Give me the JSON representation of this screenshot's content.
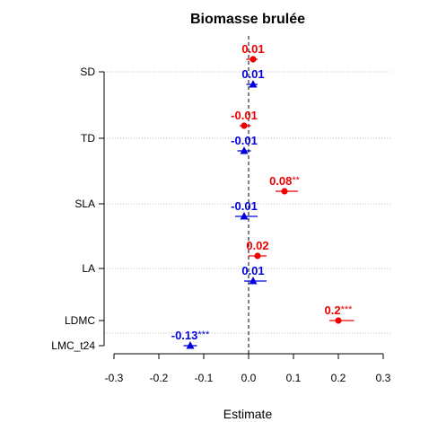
{
  "chart_data": {
    "type": "scatter",
    "title": "Biomasse brulée",
    "xlabel": "Estimate",
    "ylabel": "",
    "xlim": [
      -0.3,
      0.3
    ],
    "x_ticks": [
      "-0.3",
      "-0.2",
      "-0.1",
      "0.0",
      "0.1",
      "0.2",
      "0.3"
    ],
    "x_tick_values": [
      -0.3,
      -0.2,
      -0.1,
      0.0,
      0.1,
      0.2,
      0.3
    ],
    "reference_line_x": 0,
    "grid": "horizontal dotted at each trait",
    "categories": [
      "SD",
      "TD",
      "SLA",
      "LA",
      "LDMC",
      "LMC_t24"
    ],
    "series": [
      {
        "color": "#ee0000",
        "marker": "circle",
        "points": [
          {
            "category": "SD",
            "estimate": 0.01,
            "ci": [
              -0.005,
              0.02
            ],
            "label": "0.01",
            "stars": ""
          },
          {
            "category": "TD",
            "estimate": -0.01,
            "ci": [
              -0.02,
              0.005
            ],
            "label": "-0.01",
            "stars": ""
          },
          {
            "category": "SLA",
            "estimate": 0.08,
            "ci": [
              0.06,
              0.11
            ],
            "label": "0.08",
            "stars": "**"
          },
          {
            "category": "LA",
            "estimate": 0.02,
            "ci": [
              0.0,
              0.04
            ],
            "label": "0.02",
            "stars": ""
          },
          {
            "category": "LDMC",
            "estimate": 0.2,
            "ci": [
              0.18,
              0.235
            ],
            "label": "0.2",
            "stars": "***"
          }
        ]
      },
      {
        "color": "#0000dd",
        "marker": "triangle",
        "points": [
          {
            "category": "SD",
            "estimate": 0.01,
            "ci": [
              -0.005,
              0.02
            ],
            "label": "0.01",
            "stars": ""
          },
          {
            "category": "TD",
            "estimate": -0.01,
            "ci": [
              -0.025,
              0.005
            ],
            "label": "-0.01",
            "stars": ""
          },
          {
            "category": "SLA",
            "estimate": -0.01,
            "ci": [
              -0.03,
              0.02
            ],
            "label": "-0.01",
            "stars": ""
          },
          {
            "category": "LA",
            "estimate": 0.01,
            "ci": [
              -0.01,
              0.04
            ],
            "label": "0.01",
            "stars": ""
          },
          {
            "category": "LMC_t24",
            "estimate": -0.13,
            "ci": [
              -0.145,
              -0.115
            ],
            "label": "-0.13",
            "stars": "***"
          }
        ]
      }
    ]
  }
}
